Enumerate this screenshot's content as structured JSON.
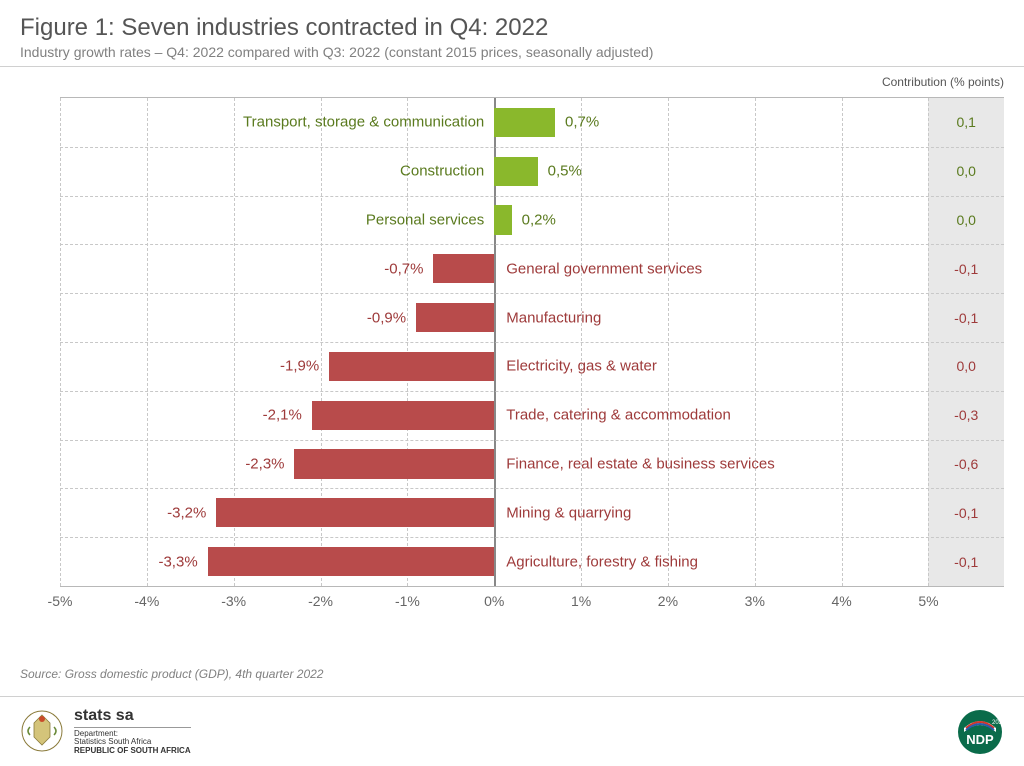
{
  "title": "Figure 1: Seven industries contracted in Q4: 2022",
  "subtitle": "Industry growth rates – Q4: 2022 compared with Q3: 2022 (constant 2015 prices, seasonally adjusted)",
  "contribution_header": "Contribution (% points)",
  "source": "Source: Gross domestic product (GDP), 4th quarter 2022",
  "footer": {
    "org_name": "stats sa",
    "org_dept": "Department:",
    "org_line2": "Statistics South Africa",
    "org_line3": "REPUBLIC OF SOUTH AFRICA",
    "ndp_label": "NDP"
  },
  "chart": {
    "type": "bar-horizontal-diverging",
    "xlim": [
      -5,
      5
    ],
    "xtick_step": 1,
    "xticks": [
      "-5%",
      "-4%",
      "-3%",
      "-2%",
      "-1%",
      "0%",
      "1%",
      "2%",
      "3%",
      "4%",
      "5%"
    ],
    "positive_color": "#8ab82c",
    "negative_color": "#b84b4b",
    "positive_text_color": "#5a7a1e",
    "negative_text_color": "#9e3a3a",
    "grid_color": "#c8c8c8",
    "zero_line_color": "#888888",
    "background_color": "#ffffff",
    "contrib_col_bg": "#e8e8e8",
    "label_fontsize": 15,
    "axis_fontsize": 14,
    "bars": [
      {
        "label": "Transport, storage & communication",
        "value": 0.7,
        "value_text": "0,7%",
        "contribution": "0,1",
        "positive": true
      },
      {
        "label": "Construction",
        "value": 0.5,
        "value_text": "0,5%",
        "contribution": "0,0",
        "positive": true
      },
      {
        "label": "Personal services",
        "value": 0.2,
        "value_text": "0,2%",
        "contribution": "0,0",
        "positive": true
      },
      {
        "label": "General government services",
        "value": -0.7,
        "value_text": "-0,7%",
        "contribution": "-0,1",
        "positive": false
      },
      {
        "label": "Manufacturing",
        "value": -0.9,
        "value_text": "-0,9%",
        "contribution": "-0,1",
        "positive": false
      },
      {
        "label": "Electricity, gas & water",
        "value": -1.9,
        "value_text": "-1,9%",
        "contribution": "0,0",
        "positive": false
      },
      {
        "label": "Trade, catering & accommodation",
        "value": -2.1,
        "value_text": "-2,1%",
        "contribution": "-0,3",
        "positive": false
      },
      {
        "label": "Finance, real estate & business services",
        "value": -2.3,
        "value_text": "-2,3%",
        "contribution": "-0,6",
        "positive": false
      },
      {
        "label": "Mining & quarrying",
        "value": -3.2,
        "value_text": "-3,2%",
        "contribution": "-0,1",
        "positive": false
      },
      {
        "label": "Agriculture, forestry & fishing",
        "value": -3.3,
        "value_text": "-3,3%",
        "contribution": "-0,1",
        "positive": false
      }
    ]
  }
}
